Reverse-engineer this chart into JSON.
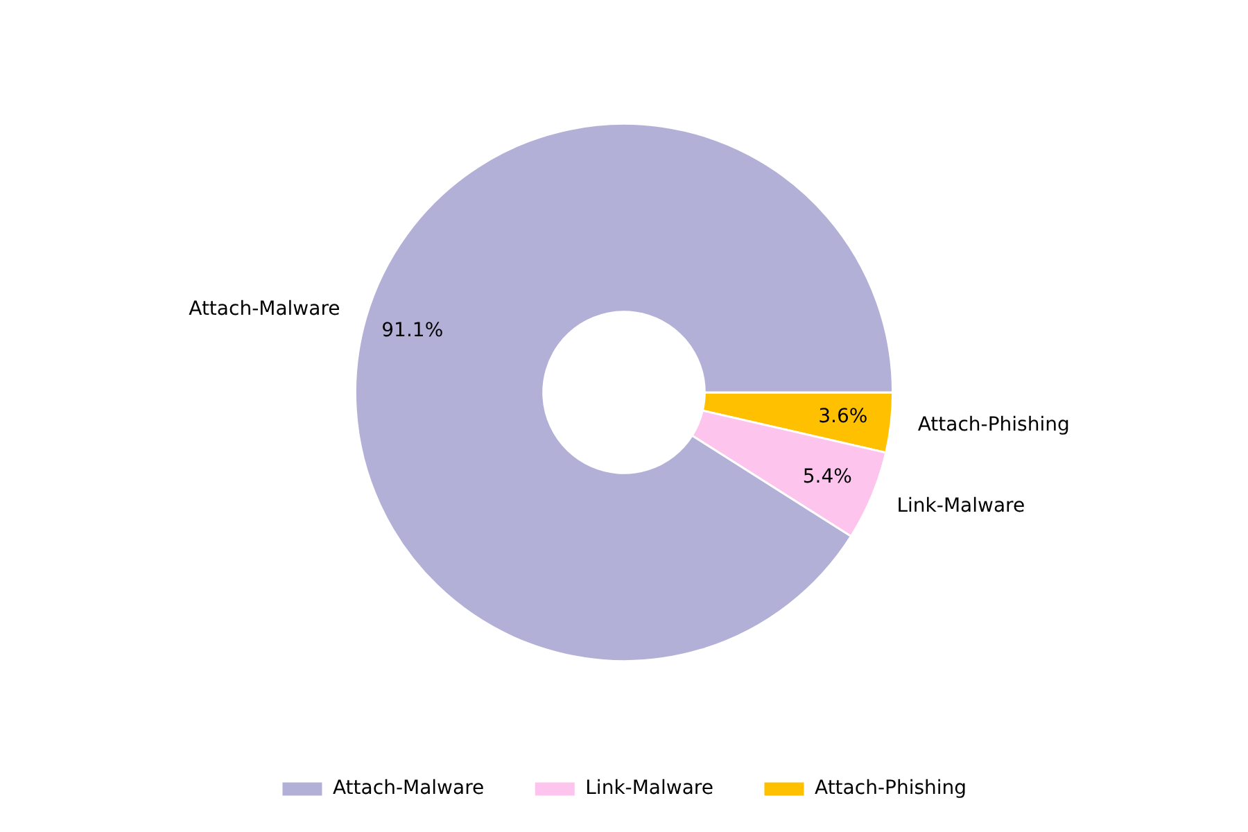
{
  "chart_data": {
    "type": "donut",
    "categories": [
      "Attach-Malware",
      "Link-Malware",
      "Attach-Phishing"
    ],
    "values": [
      91.1,
      5.4,
      3.6
    ],
    "value_labels": [
      "91.1%",
      "5.4%",
      "3.6%"
    ],
    "colors": [
      "#b3b0d7",
      "#fdc5ed",
      "#ffc000"
    ],
    "legend": "bottom"
  }
}
